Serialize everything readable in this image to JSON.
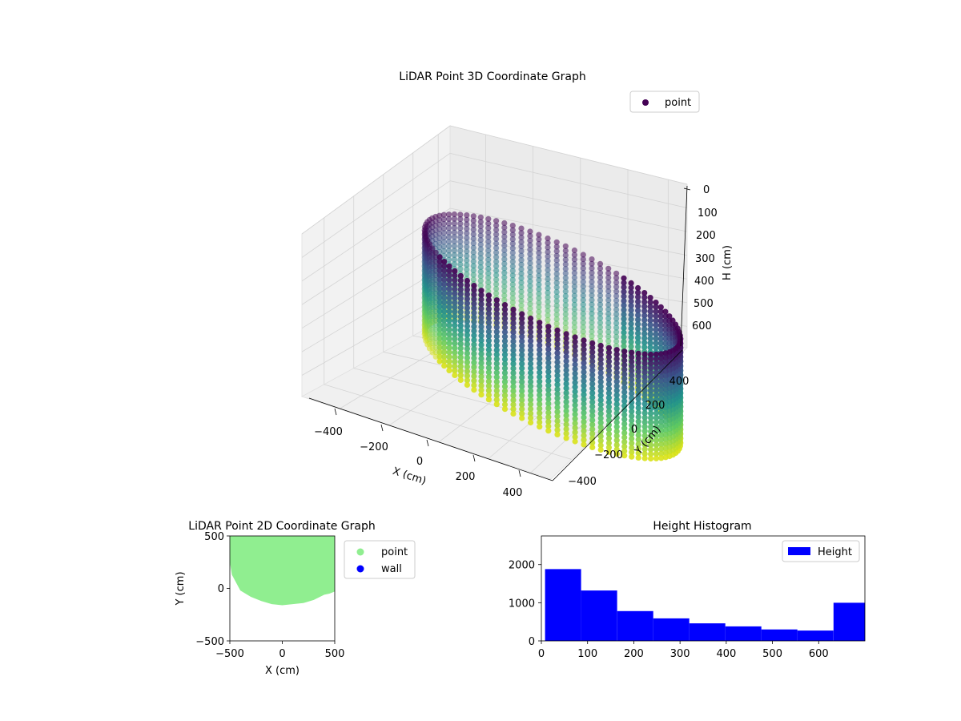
{
  "colors": {
    "viridis_low": "#440154",
    "viridis_mid": "#21918c",
    "viridis_high": "#d8e219",
    "point_2d": "#90ee90",
    "wall_2d": "#0000ff",
    "hist_bar": "#0000ff"
  },
  "chart_data": [
    {
      "type": "scatter",
      "title": "LiDAR Point 3D Coordinate Graph",
      "xlabel": "X (cm)",
      "ylabel": "Y (cm)",
      "zlabel": "H (cm)",
      "x_ticks": [
        "−400",
        "−200",
        "0",
        "200",
        "400"
      ],
      "y_ticks": [
        "400",
        "200",
        "0",
        "−200",
        "−400"
      ],
      "z_ticks": [
        "0",
        "100",
        "200",
        "300",
        "400",
        "500",
        "600"
      ],
      "z_inverted": true,
      "legend": [
        "point"
      ],
      "legend_position": "top-right",
      "cylinder": {
        "radius_cm": 450,
        "height_range_cm": [
          0,
          690
        ]
      }
    },
    {
      "type": "scatter",
      "title": "LiDAR Point 2D Coordinate Graph",
      "xlabel": "X (cm)",
      "ylabel": "Y (cm)",
      "xlim": [
        -500,
        500
      ],
      "ylim": [
        -500,
        500
      ],
      "x_ticks": [
        "−500",
        "0",
        "500"
      ],
      "y_ticks": [
        "500",
        "0",
        "−500"
      ],
      "legend": [
        "point",
        "wall"
      ],
      "legend_position": "outside-right",
      "point_region_boundary": [
        [
          -500,
          500
        ],
        [
          500,
          500
        ],
        [
          500,
          -30
        ],
        [
          450,
          -50
        ],
        [
          400,
          -60
        ],
        [
          300,
          -110
        ],
        [
          200,
          -140
        ],
        [
          100,
          -150
        ],
        [
          0,
          -160
        ],
        [
          -100,
          -150
        ],
        [
          -200,
          -120
        ],
        [
          -300,
          -80
        ],
        [
          -400,
          -20
        ],
        [
          -480,
          130
        ],
        [
          -500,
          250
        ]
      ]
    },
    {
      "type": "bar",
      "title": "Height Histogram",
      "xlim": [
        0,
        700
      ],
      "ylim": [
        0,
        2750
      ],
      "x_ticks": [
        "0",
        "100",
        "200",
        "300",
        "400",
        "500",
        "600"
      ],
      "y_ticks": [
        "0",
        "1000",
        "2000"
      ],
      "legend": [
        "Height"
      ],
      "legend_position": "top-right",
      "bins": [
        {
          "start": 8,
          "end": 86,
          "count": 1880
        },
        {
          "start": 86,
          "end": 164,
          "count": 1320
        },
        {
          "start": 164,
          "end": 242,
          "count": 780
        },
        {
          "start": 242,
          "end": 320,
          "count": 590
        },
        {
          "start": 320,
          "end": 398,
          "count": 460
        },
        {
          "start": 398,
          "end": 476,
          "count": 380
        },
        {
          "start": 476,
          "end": 554,
          "count": 300
        },
        {
          "start": 554,
          "end": 632,
          "count": 270
        },
        {
          "start": 632,
          "end": 710,
          "count": 1000
        }
      ]
    }
  ]
}
